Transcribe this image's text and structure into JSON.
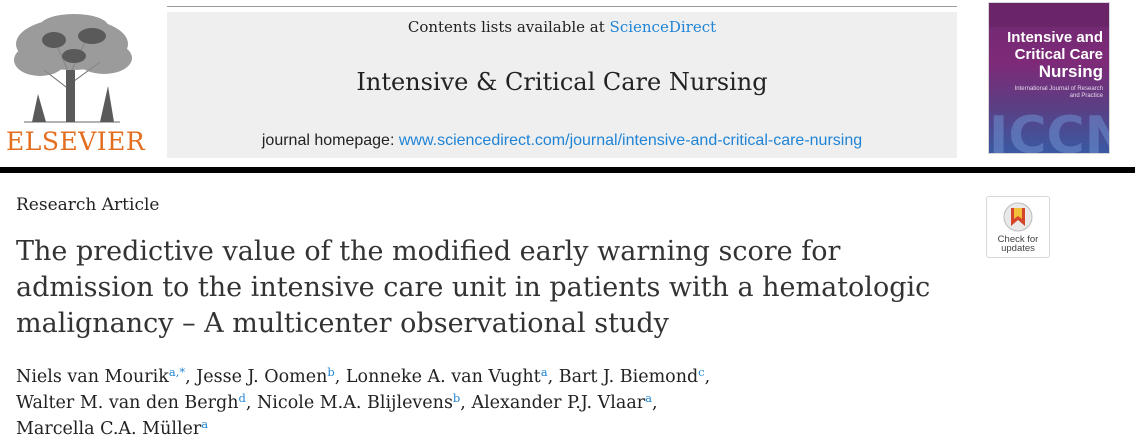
{
  "header": {
    "publisher": "ELSEVIER",
    "contents_prefix": "Contents lists available at ",
    "contents_link": "ScienceDirect",
    "journal_title": "Intensive & Critical Care Nursing",
    "homepage_prefix": "journal homepage: ",
    "homepage_url": "www.sciencedirect.com/journal/intensive-and-critical-care-nursing"
  },
  "cover": {
    "title_line1": "Intensive and",
    "title_line2": "Critical Care",
    "title_line3": "Nursing",
    "subtitle": "International Journal of Research and Practice",
    "watermark": "ICCN"
  },
  "article": {
    "type": "Research Article",
    "title": "The predictive value of the modified early warning score for admission to the intensive care unit in patients with a hematologic malignancy – A multicenter observational study",
    "check_badge": {
      "line1": "Check for",
      "line2": "updates"
    }
  },
  "authors": [
    {
      "name": "Niels van Mourik",
      "sup": "a,*",
      "sep": ", "
    },
    {
      "name": "Jesse J. Oomen",
      "sup": "b",
      "sep": ", "
    },
    {
      "name": "Lonneke A. van Vught",
      "sup": "a",
      "sep": ", "
    },
    {
      "name": "Bart J. Biemond",
      "sup": "c",
      "sep": ","
    },
    {
      "name": "Walter M. van den Bergh",
      "sup": "d",
      "sep": ", "
    },
    {
      "name": "Nicole M.A. Blijlevens",
      "sup": "b",
      "sep": ", "
    },
    {
      "name": "Alexander P.J. Vlaar",
      "sup": "a",
      "sep": ","
    },
    {
      "name": "Marcella C.A. Müller",
      "sup": "a",
      "sep": ""
    }
  ],
  "colors": {
    "link": "#1f84d6",
    "publisher": "#e36e1f",
    "cover": "#7e2a78"
  }
}
